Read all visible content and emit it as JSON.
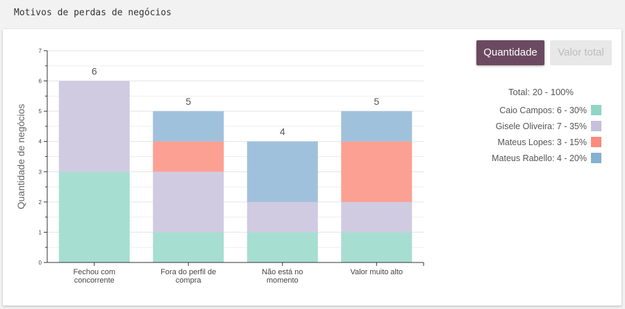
{
  "header": {
    "title": "Motivos de perdas de negócios"
  },
  "toolbar": {
    "quantity_label": "Quantidade",
    "total_value_label": "Valor total"
  },
  "legend": {
    "total": "Total: 20 - 100%",
    "items": [
      {
        "label": "Caio Campos: 6 - 30%",
        "color": "#91d5c4"
      },
      {
        "label": "Gisele Oliveira: 7 - 35%",
        "color": "#c7bfdc"
      },
      {
        "label": "Mateus Lopes: 3 - 15%",
        "color": "#fb8b7d"
      },
      {
        "label": "Mateus Rabello: 4 - 20%",
        "color": "#85b0d1"
      }
    ]
  },
  "chart_data": {
    "type": "bar",
    "stacked": true,
    "categories": [
      [
        "Fechou com",
        "concorrente"
      ],
      [
        "Fora do perfil de",
        "compra"
      ],
      [
        "Não está no",
        "momento"
      ],
      [
        "Valor muito alto"
      ]
    ],
    "series": [
      {
        "name": "Caio Campos",
        "values": [
          3,
          1,
          1,
          1
        ],
        "color": "#a6ded1"
      },
      {
        "name": "Gisele Oliveira",
        "values": [
          3,
          2,
          1,
          1
        ],
        "color": "#d0cbe1"
      },
      {
        "name": "Mateus Lopes",
        "values": [
          0,
          1,
          0,
          2
        ],
        "color": "#fca093"
      },
      {
        "name": "Mateus Rabello",
        "values": [
          0,
          1,
          2,
          1
        ],
        "color": "#a0c1dc"
      }
    ],
    "totals": [
      6,
      5,
      4,
      5
    ],
    "ylabel": "Quantidade de negócios",
    "ylim": [
      0,
      7
    ],
    "yticks": [
      0,
      1,
      2,
      3,
      4,
      5,
      6,
      7
    ],
    "grid": true
  }
}
